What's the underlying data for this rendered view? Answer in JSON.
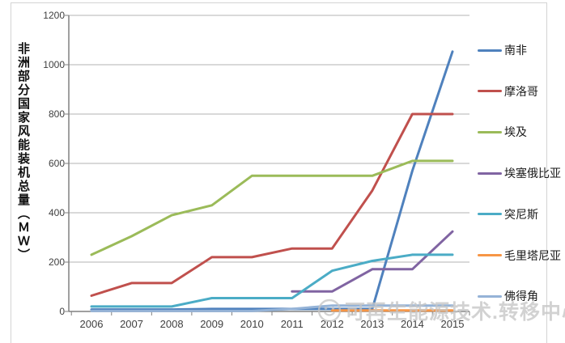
{
  "watermark": {
    "text": "可再生能源技术.转移中心",
    "color": "#c6c6c6"
  },
  "axes": {
    "grid_color": "#b3b3b3",
    "axis_color": "#808080",
    "tick_label_color": "#3f3f3f"
  },
  "chart_data": {
    "type": "line",
    "title": "",
    "xlabel": "",
    "ylabel": "非洲部分国家风能装机总量（ＭＷ）",
    "x": [
      2006,
      2007,
      2008,
      2009,
      2010,
      2011,
      2012,
      2013,
      2014,
      2015
    ],
    "ylim": [
      0,
      1200
    ],
    "yticks": [
      0,
      200,
      400,
      600,
      800,
      1000,
      1200
    ],
    "grid": true,
    "legend_position": "right",
    "series": [
      {
        "name": "南非",
        "color": "#4F81BD",
        "values": [
          8,
          8,
          8,
          10,
          10,
          10,
          10,
          10,
          570,
          1053
        ]
      },
      {
        "name": "摩洛哥",
        "color": "#C0504D",
        "values": [
          64,
          115,
          115,
          220,
          220,
          255,
          255,
          490,
          800,
          800
        ]
      },
      {
        "name": "埃及",
        "color": "#9BBB59",
        "values": [
          230,
          305,
          390,
          430,
          550,
          550,
          550,
          550,
          610,
          610
        ]
      },
      {
        "name": "埃塞俄比亚",
        "color": "#8064A2",
        "values": [
          null,
          null,
          null,
          null,
          null,
          81,
          81,
          171,
          171,
          324
        ]
      },
      {
        "name": "突尼斯",
        "color": "#4BACC6",
        "values": [
          20,
          20,
          20,
          54,
          54,
          54,
          165,
          205,
          230,
          230
        ]
      },
      {
        "name": "毛里塔尼亚",
        "color": "#F79646",
        "values": [
          null,
          null,
          null,
          null,
          null,
          null,
          4,
          4,
          4,
          4
        ]
      },
      {
        "name": "佛得角",
        "color": "#95B3D7",
        "values": [
          2,
          2,
          2,
          2,
          2,
          10,
          24,
          24,
          24,
          24
        ]
      }
    ]
  }
}
